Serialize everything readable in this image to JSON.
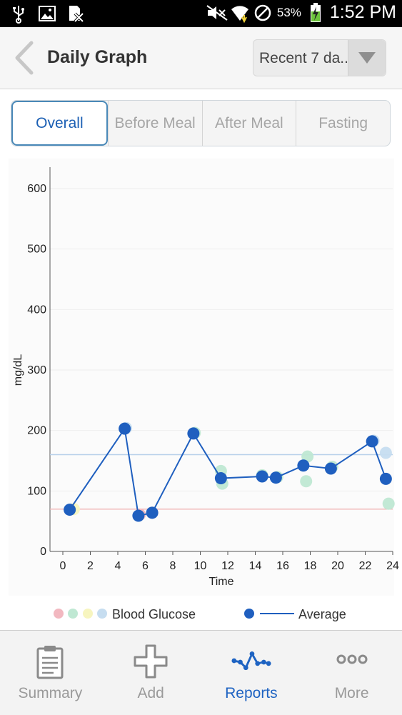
{
  "status_bar": {
    "battery_pct": "53%",
    "time": "1:52 PM",
    "icons": [
      "usb-icon",
      "image-icon",
      "sim-icon",
      "mute-icon",
      "wifi-icon",
      "block-icon",
      "battery-charging-icon"
    ]
  },
  "header": {
    "title": "Daily Graph",
    "range_select": "Recent 7 da.."
  },
  "tabs": [
    {
      "label": "Overall",
      "active": true
    },
    {
      "label": "Before Meal",
      "active": false
    },
    {
      "label": "After Meal",
      "active": false
    },
    {
      "label": "Fasting",
      "active": false
    }
  ],
  "chart_data": {
    "type": "scatter",
    "ylabel": "mg/dL",
    "xlabel": "Time",
    "xlim": [
      0,
      24
    ],
    "ylim": [
      0,
      600
    ],
    "x_ticks": [
      0,
      2,
      4,
      6,
      8,
      10,
      12,
      14,
      16,
      18,
      20,
      22,
      24
    ],
    "y_ticks": [
      0,
      100,
      200,
      300,
      400,
      500,
      600
    ],
    "reference_lines": [
      {
        "y": 70,
        "color": "#f0b9b9"
      },
      {
        "y": 160,
        "color": "#b8d0ea"
      }
    ],
    "series": [
      {
        "name": "Blood Glucose",
        "colors": [
          "#f2b8c0",
          "#bfe8d3",
          "#f7f5bf",
          "#c6ddf0"
        ],
        "points": [
          {
            "x": 0.8,
            "y": 70,
            "color": "#f7f5bf"
          },
          {
            "x": 4.6,
            "y": 204,
            "color": "#c6ddf0"
          },
          {
            "x": 5.6,
            "y": 61,
            "color": "#f2b8c0"
          },
          {
            "x": 6.5,
            "y": 64,
            "color": "#f2b8c0"
          },
          {
            "x": 9.6,
            "y": 196,
            "color": "#bfe8d3"
          },
          {
            "x": 11.5,
            "y": 133,
            "color": "#bfe8d3"
          },
          {
            "x": 11.6,
            "y": 112,
            "color": "#bfe8d3"
          },
          {
            "x": 14.5,
            "y": 126,
            "color": "#bfe8d3"
          },
          {
            "x": 15.6,
            "y": 123,
            "color": "#bfe8d3"
          },
          {
            "x": 17.8,
            "y": 157,
            "color": "#bfe8d3"
          },
          {
            "x": 17.7,
            "y": 116,
            "color": "#bfe8d3"
          },
          {
            "x": 19.6,
            "y": 140,
            "color": "#bfe8d3"
          },
          {
            "x": 22.6,
            "y": 183,
            "color": "#c6ddf0"
          },
          {
            "x": 23.5,
            "y": 163,
            "color": "#c6ddf0"
          },
          {
            "x": 23.7,
            "y": 79,
            "color": "#bfe8d3"
          }
        ]
      },
      {
        "name": "Average",
        "color": "#1f5fbf",
        "points": [
          {
            "x": 0.5,
            "y": 69
          },
          {
            "x": 4.5,
            "y": 203
          },
          {
            "x": 5.5,
            "y": 59
          },
          {
            "x": 6.5,
            "y": 64
          },
          {
            "x": 9.5,
            "y": 195
          },
          {
            "x": 11.5,
            "y": 121
          },
          {
            "x": 14.5,
            "y": 124
          },
          {
            "x": 15.5,
            "y": 122
          },
          {
            "x": 17.5,
            "y": 142
          },
          {
            "x": 19.5,
            "y": 137
          },
          {
            "x": 22.5,
            "y": 182
          },
          {
            "x": 23.5,
            "y": 120
          }
        ]
      }
    ]
  },
  "legend": {
    "blood_glucose_label": "Blood Glucose",
    "average_label": "Average",
    "dot_colors": [
      "#f2b8c0",
      "#bfe8d3",
      "#f7f5bf",
      "#c6ddf0"
    ],
    "average_color": "#1f5fbf"
  },
  "bottom_nav": [
    {
      "label": "Summary",
      "icon": "clipboard-icon",
      "active": false
    },
    {
      "label": "Add",
      "icon": "plus-icon",
      "active": false
    },
    {
      "label": "Reports",
      "icon": "reports-chart-icon",
      "active": true
    },
    {
      "label": "More",
      "icon": "more-dots-icon",
      "active": false
    }
  ]
}
